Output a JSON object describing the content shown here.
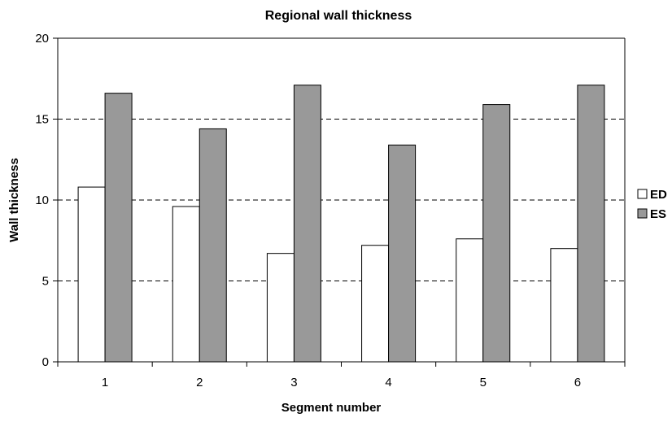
{
  "chart_data": {
    "type": "bar",
    "title": "Regional wall thickness",
    "xlabel": "Segment number",
    "ylabel": "Wall thickness",
    "categories": [
      "1",
      "2",
      "3",
      "4",
      "5",
      "6"
    ],
    "series": [
      {
        "name": "ED",
        "values": [
          10.8,
          9.6,
          6.7,
          7.2,
          7.6,
          7.0
        ],
        "color": "#ffffff"
      },
      {
        "name": "ES",
        "values": [
          16.6,
          14.4,
          17.1,
          13.4,
          15.9,
          17.1
        ],
        "color": "#999999"
      }
    ],
    "ylim": [
      0,
      20
    ],
    "yticks": [
      0,
      5,
      10,
      15,
      20
    ],
    "grid": "horizontal dashed",
    "legend_position": "right"
  }
}
